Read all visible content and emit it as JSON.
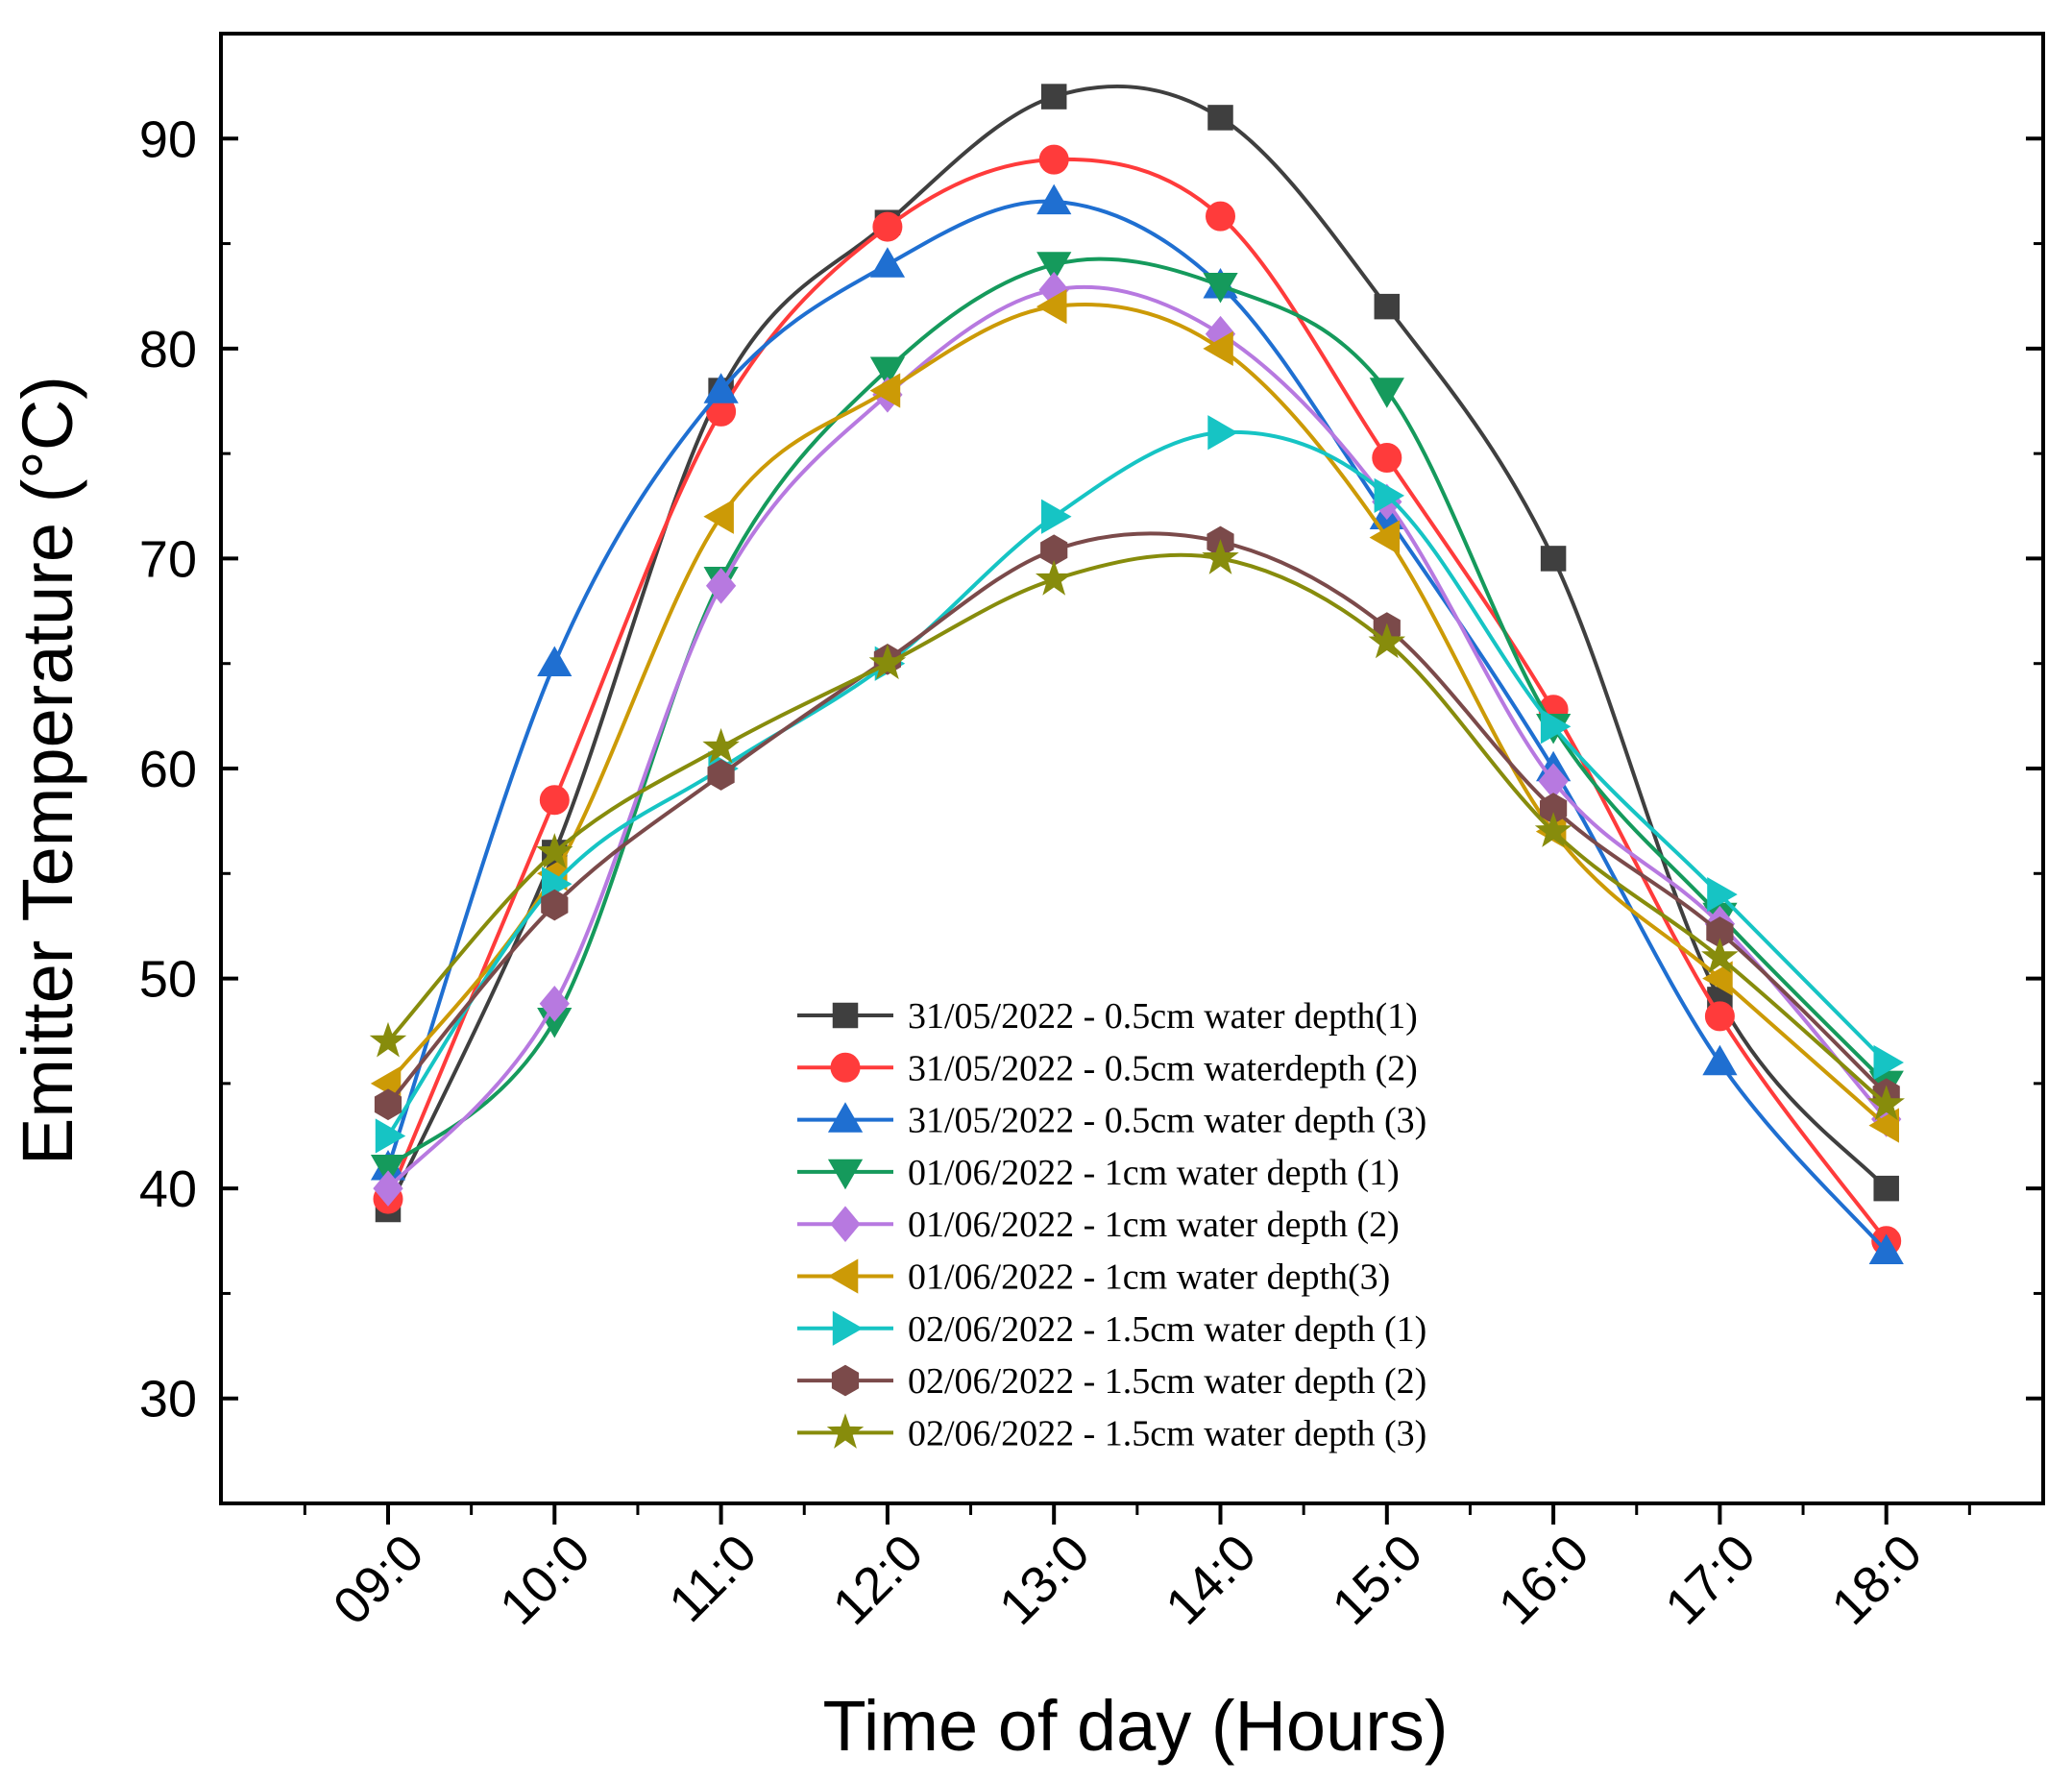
{
  "chart_data": {
    "type": "line",
    "title": "",
    "xlabel": "Time of day (Hours)",
    "ylabel": "Emitter Temperature (°C)",
    "categories": [
      "09:0",
      "10:0",
      "11:0",
      "12:0",
      "13:0",
      "14:0",
      "15:0",
      "16:0",
      "17:0",
      "18:0"
    ],
    "ylim": [
      25,
      95
    ],
    "yticks": [
      30,
      40,
      50,
      60,
      70,
      80,
      90
    ],
    "legend_position": "bottom-center",
    "smooth": true,
    "series": [
      {
        "name": "31/05/2022 - 0.5cm water depth(1)",
        "color": "#3f3f3f",
        "marker": "square",
        "values": [
          39,
          56,
          78,
          86,
          92,
          91,
          82,
          70,
          49,
          40
        ]
      },
      {
        "name": "31/05/2022 - 0.5cm waterdepth (2)",
        "color": "#ff3b3b",
        "marker": "circle",
        "values": [
          39.5,
          58.5,
          77,
          85.8,
          89,
          86.3,
          74.8,
          62.8,
          48.2,
          37.5
        ]
      },
      {
        "name": "31/05/2022 - 0.5cm water depth (3)",
        "color": "#1f6fd1",
        "marker": "triangle-up",
        "values": [
          41,
          65,
          78,
          84,
          87,
          83,
          72,
          60,
          46,
          37
        ]
      },
      {
        "name": "01/06/2022 - 1cm water depth (1)",
        "color": "#159a5c",
        "marker": "triangle-down",
        "values": [
          41,
          48,
          69,
          79,
          84,
          83,
          78,
          62,
          53,
          45
        ]
      },
      {
        "name": "01/06/2022 - 1cm water depth (2)",
        "color": "#b779e0",
        "marker": "diamond",
        "values": [
          40,
          48.8,
          68.7,
          77.8,
          82.8,
          80.7,
          72.7,
          59.4,
          52.6,
          43.3
        ]
      },
      {
        "name": "01/06/2022 - 1cm water depth(3)",
        "color": "#cc9a06",
        "marker": "triangle-left",
        "values": [
          45,
          55,
          72,
          78,
          82,
          80,
          71,
          57,
          50,
          43
        ]
      },
      {
        "name": "02/06/2022 - 1.5cm water depth (1)",
        "color": "#16c4c4",
        "marker": "triangle-right",
        "values": [
          42.5,
          54.5,
          60,
          65,
          72,
          76,
          73,
          62,
          54,
          46
        ]
      },
      {
        "name": "02/06/2022 - 1.5cm water depth (2)",
        "color": "#7b4a4a",
        "marker": "hexagon",
        "values": [
          44,
          53.5,
          59.7,
          65.2,
          70.4,
          70.8,
          66.7,
          58.1,
          52.2,
          44.5
        ]
      },
      {
        "name": "02/06/2022 - 1.5cm water depth (3)",
        "color": "#878c0c",
        "marker": "star",
        "values": [
          47,
          56,
          61,
          65,
          69,
          70,
          66,
          57,
          51,
          44
        ]
      }
    ]
  }
}
